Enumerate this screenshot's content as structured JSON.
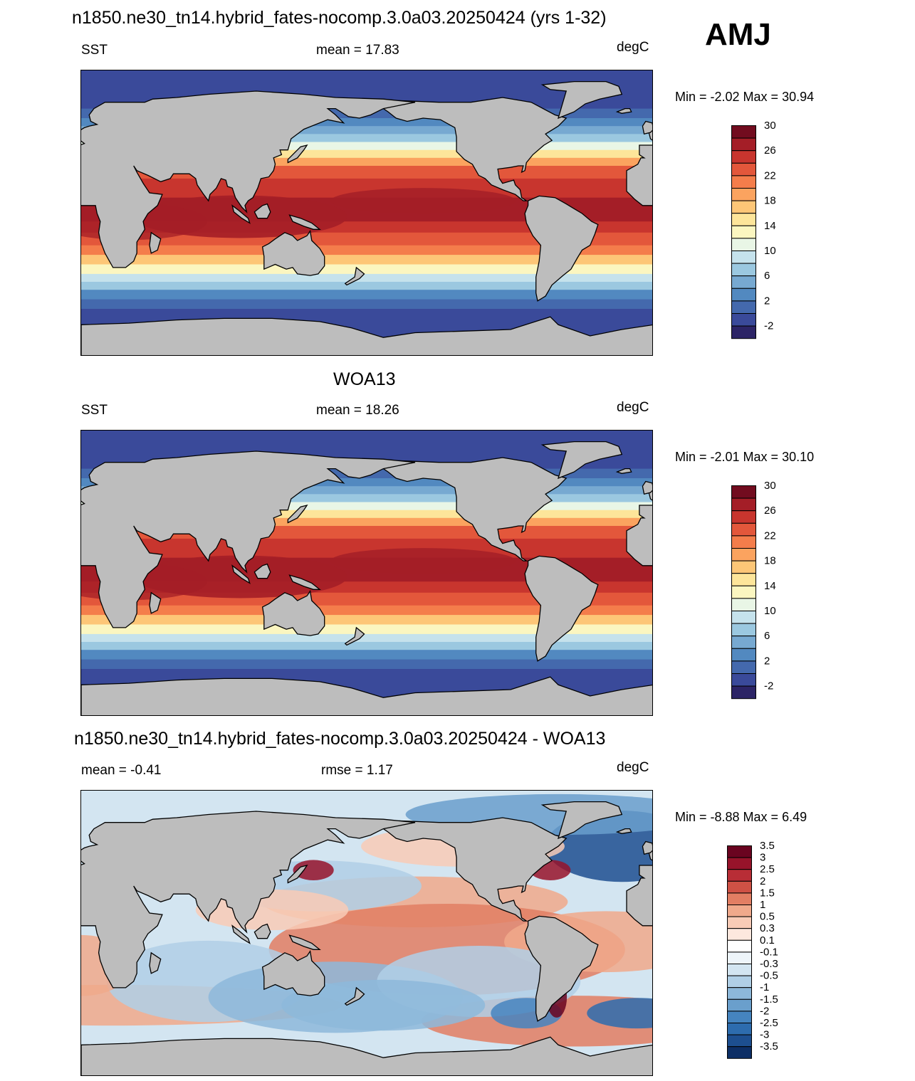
{
  "season": "AMJ",
  "panels": [
    {
      "id": "model",
      "title": "n1850.ne30_tn14.hybrid_fates-nocomp.3.0a03.20250424 (yrs 1-32)",
      "left_label": "SST",
      "center_label": "mean =  17.83",
      "units": "degC",
      "minmax": "Min =  -2.02 Max =  30.94"
    },
    {
      "id": "obs",
      "title": "WOA13",
      "left_label": "SST",
      "center_label": "mean =  18.26",
      "units": "degC",
      "minmax": "Min =  -2.01 Max =  30.10"
    },
    {
      "id": "diff",
      "title": "n1850.ne30_tn14.hybrid_fates-nocomp.3.0a03.20250424 - WOA13",
      "left_label": "mean =  -0.41",
      "center_label": "rmse =   1.17",
      "units": "degC",
      "minmax": "Min =  -8.88 Max =   6.49"
    }
  ],
  "sst_colorbar": {
    "colors": [
      "#2c2466",
      "#3a4a9a",
      "#4469ad",
      "#5289c0",
      "#77a9d1",
      "#9bc8e0",
      "#c5e2ec",
      "#e9f6e6",
      "#fbf6c0",
      "#fde59a",
      "#fdc677",
      "#fba35f",
      "#f47d4b",
      "#e3573b",
      "#c8352e",
      "#a41e27",
      "#720c1f"
    ],
    "tick_labels": [
      "-2",
      "2",
      "6",
      "10",
      "14",
      "18",
      "22",
      "26",
      "30"
    ]
  },
  "diff_colorbar": {
    "colors": [
      "#0d2f66",
      "#1d4f90",
      "#2d6cae",
      "#4584bf",
      "#6a9fcc",
      "#8db8da",
      "#b0cfe6",
      "#d3e5f1",
      "#eef5fa",
      "#ffffff",
      "#fde8de",
      "#f8cbb6",
      "#f0a98b",
      "#e27e63",
      "#cf5145",
      "#b82d36",
      "#97132a",
      "#6a0420"
    ],
    "tick_labels": [
      "-3.5",
      "-3",
      "-2.5",
      "-2",
      "-1.5",
      "-1",
      "-0.5",
      "-0.3",
      "-0.1",
      "0.1",
      "0.3",
      "0.5",
      "1",
      "1.5",
      "2",
      "2.5",
      "3",
      "3.5"
    ]
  }
}
